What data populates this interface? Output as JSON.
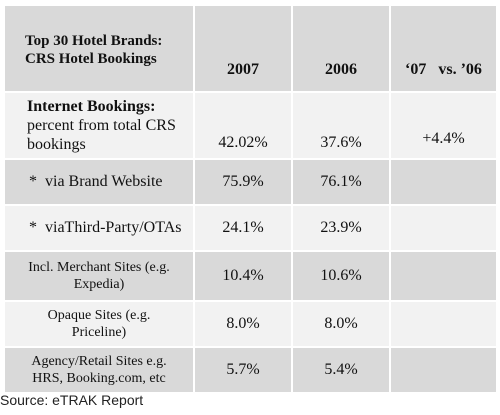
{
  "header": {
    "title_line1": "Top 30 Hotel Brands:",
    "title_line2": "CRS Hotel Bookings",
    "col_2007": "2007",
    "col_2006": "2006",
    "col_compare": "‘07   vs. ’06"
  },
  "rows": [
    {
      "label_bold": "Internet  Bookings:",
      "label_line2": "percent from total CRS",
      "label_line3": "bookings",
      "v2007": "42.02%",
      "v2006": "37.6%",
      "compare": "+4.4%"
    },
    {
      "label": "*  via Brand Website",
      "v2007": "75.9%",
      "v2006": "76.1%",
      "compare": ""
    },
    {
      "label": "*  viaThird-Party/OTAs",
      "v2007": "24.1%",
      "v2006": "23.9%",
      "compare": ""
    },
    {
      "label_line1": "Incl. Merchant Sites (e.g.",
      "label_line2": "Expedia)",
      "v2007": "10.4%",
      "v2006": "10.6%",
      "compare": ""
    },
    {
      "label_line1": "Opaque Sites (e.g.",
      "label_line2": "Priceline)",
      "v2007": "8.0%",
      "v2006": "8.0%",
      "compare": ""
    },
    {
      "label_line1": "Agency/Retail Sites e.g.",
      "label_line2": "HRS, Booking.com, etc",
      "v2007": "5.7%",
      "v2006": "5.4%",
      "compare": ""
    }
  ],
  "source": "Source: eTRAK Report",
  "colors": {
    "cell_dark": "#d9d9d9",
    "cell_light": "#f2f2f2"
  }
}
